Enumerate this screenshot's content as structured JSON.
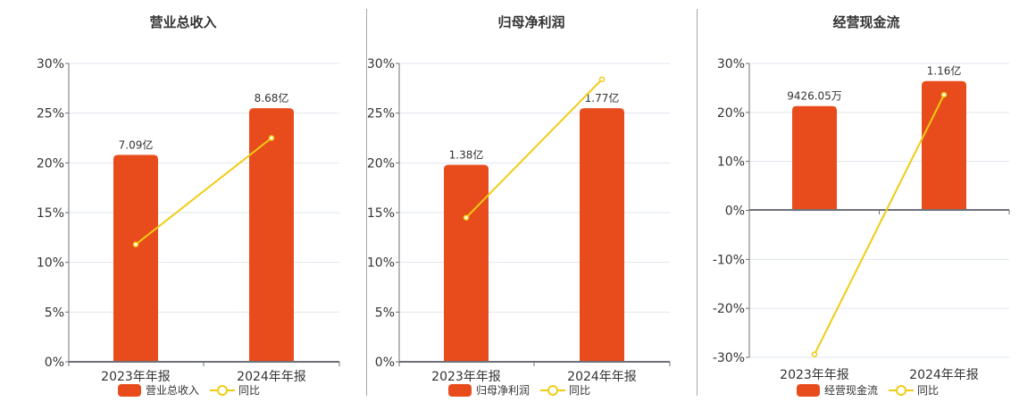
{
  "colors": {
    "bar": "#e84c1c",
    "line": "#f2cc13",
    "grid": "#dfe6ee",
    "axis": "#6e7079",
    "text": "#333333"
  },
  "legend_line_label": "同比",
  "chart_data": [
    {
      "type": "bar",
      "title": "营业总收入",
      "categories": [
        "2023年年报",
        "2024年年报"
      ],
      "series": [
        {
          "name": "营业总收入",
          "type": "bar",
          "labels": [
            "7.09亿",
            "8.68亿"
          ],
          "values": [
            7.09,
            8.68
          ],
          "unit": "亿"
        },
        {
          "name": "同比",
          "type": "line",
          "values": [
            11.8,
            22.5
          ],
          "unit": "%"
        }
      ],
      "yticks": [
        "30%",
        "25%",
        "20%",
        "15%",
        "10%",
        "5%",
        "0%"
      ],
      "ylim": [
        0,
        30
      ],
      "bar_height_pct": [
        20.8,
        25.5
      ],
      "legend_position": "bottom",
      "grid": true
    },
    {
      "type": "bar",
      "title": "归母净利润",
      "categories": [
        "2023年年报",
        "2024年年报"
      ],
      "series": [
        {
          "name": "归母净利润",
          "type": "bar",
          "labels": [
            "1.38亿",
            "1.77亿"
          ],
          "values": [
            1.38,
            1.77
          ],
          "unit": "亿"
        },
        {
          "name": "同比",
          "type": "line",
          "values": [
            14.5,
            28.4
          ],
          "unit": "%"
        }
      ],
      "yticks": [
        "30%",
        "25%",
        "20%",
        "15%",
        "10%",
        "5%",
        "0%"
      ],
      "ylim": [
        0,
        30
      ],
      "bar_height_pct": [
        19.8,
        25.5
      ],
      "legend_position": "bottom",
      "grid": true
    },
    {
      "type": "bar",
      "title": "经营现金流",
      "categories": [
        "2023年年报",
        "2024年年报"
      ],
      "series": [
        {
          "name": "经营现金流",
          "type": "bar",
          "labels": [
            "9426.05万",
            "1.16亿"
          ],
          "values": [
            0.942605,
            1.16
          ],
          "unit": "亿"
        },
        {
          "name": "同比",
          "type": "line",
          "values": [
            -29.4,
            23.6
          ],
          "unit": "%"
        }
      ],
      "yticks": [
        "30%",
        "20%",
        "10%",
        "0%",
        "-10%",
        "-20%",
        "-30%"
      ],
      "ylim": [
        -30,
        30
      ],
      "bar_height_pct": [
        21.3,
        26.4
      ],
      "legend_position": "bottom",
      "grid": true
    }
  ]
}
